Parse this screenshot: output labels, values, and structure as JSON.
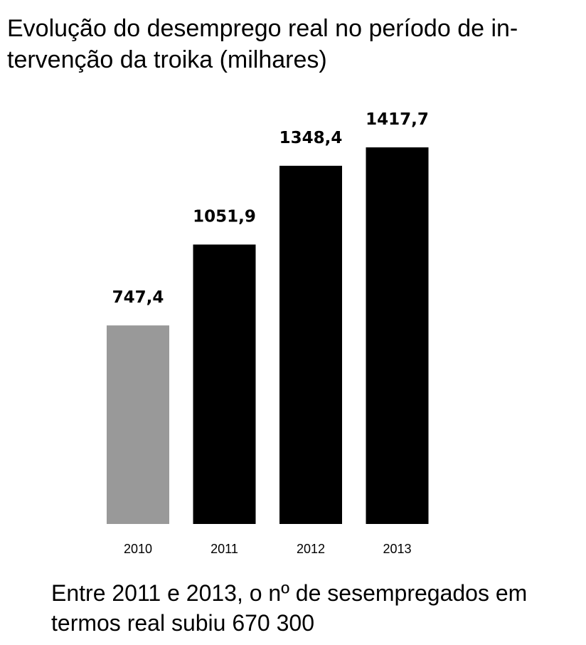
{
  "chart_data": {
    "type": "bar",
    "title": "Evolução do desemprego real no período de in-tervenção da troika (milhares)",
    "title_lines": [
      "Evolução do desemprego real no período de in-",
      "tervenção da troika (milhares)"
    ],
    "categories": [
      "2010",
      "2011",
      "2012",
      "2013"
    ],
    "values": [
      747.4,
      1051.9,
      1348.4,
      1417.7
    ],
    "value_labels": [
      "747,4",
      "1051,9",
      "1348,4",
      "1417,7"
    ],
    "bar_colors": [
      "#999999",
      "#000000",
      "#000000",
      "#000000"
    ],
    "xlabel": "",
    "ylabel": "",
    "ylim": [
      0,
      1417.7
    ],
    "grid": false,
    "legend": "none"
  },
  "note": {
    "lines": [
      "Entre 2011 e 2013, o nº de sesempregados em",
      "termos real subiu 670 300"
    ]
  }
}
